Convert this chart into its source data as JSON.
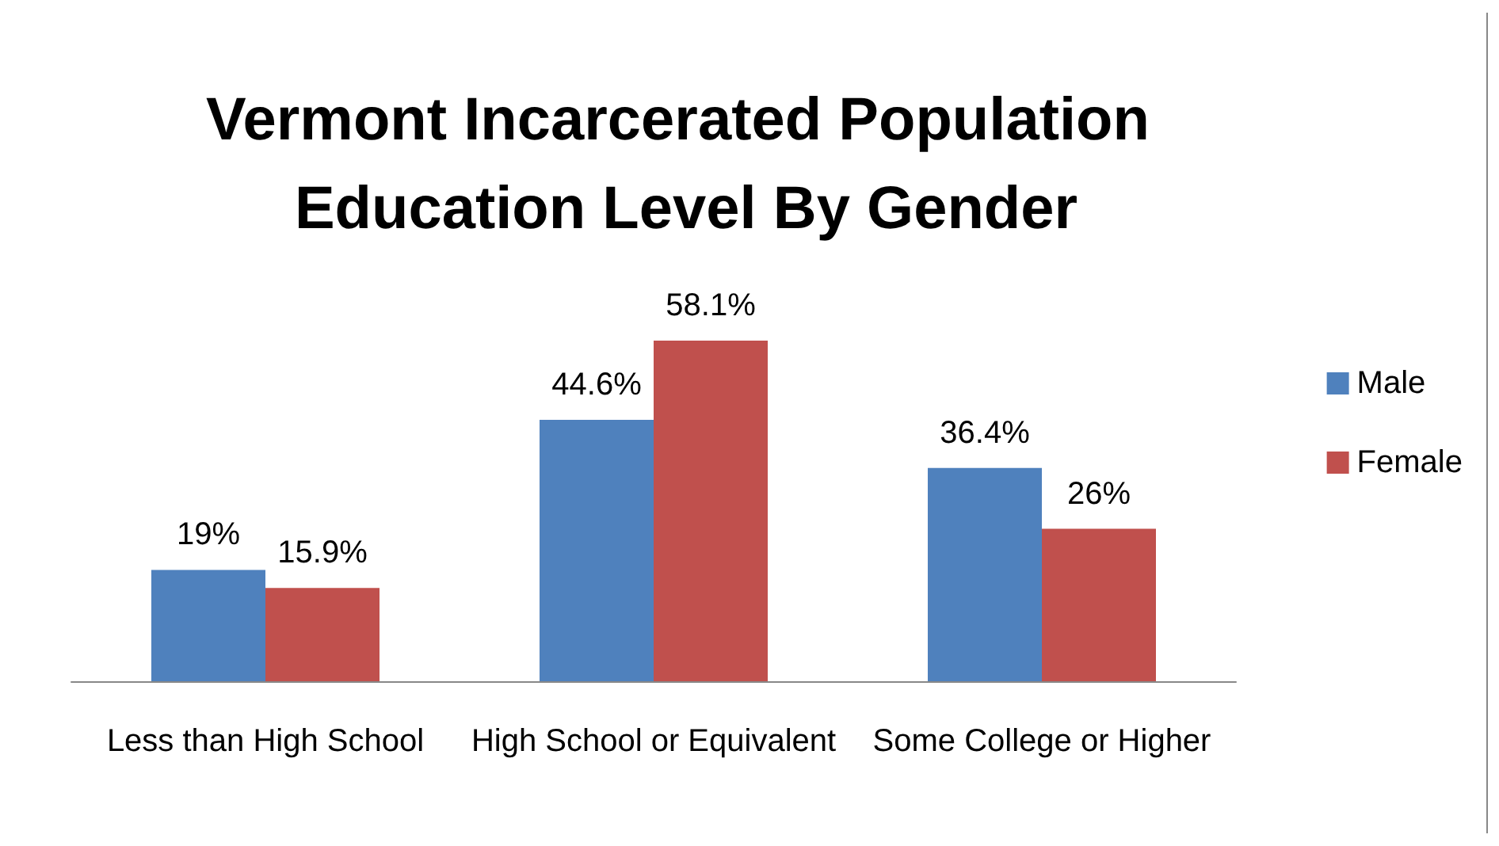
{
  "chart_data": {
    "type": "bar",
    "title": "Vermont Incarcerated Population Education Level By Gender",
    "categories": [
      "Less than High School",
      "High School or Equivalent",
      "Some College or Higher"
    ],
    "series": [
      {
        "name": "Male",
        "color": "#4f81bd",
        "values": [
          19,
          44.6,
          36.4
        ],
        "value_labels": [
          "19%",
          "44.6%",
          "36.4%"
        ]
      },
      {
        "name": "Female",
        "color": "#c0504d",
        "values": [
          15.9,
          58.1,
          26
        ],
        "value_labels": [
          "15.9%",
          "58.1%",
          "26%"
        ]
      }
    ],
    "legend": "right",
    "grid": false
  }
}
